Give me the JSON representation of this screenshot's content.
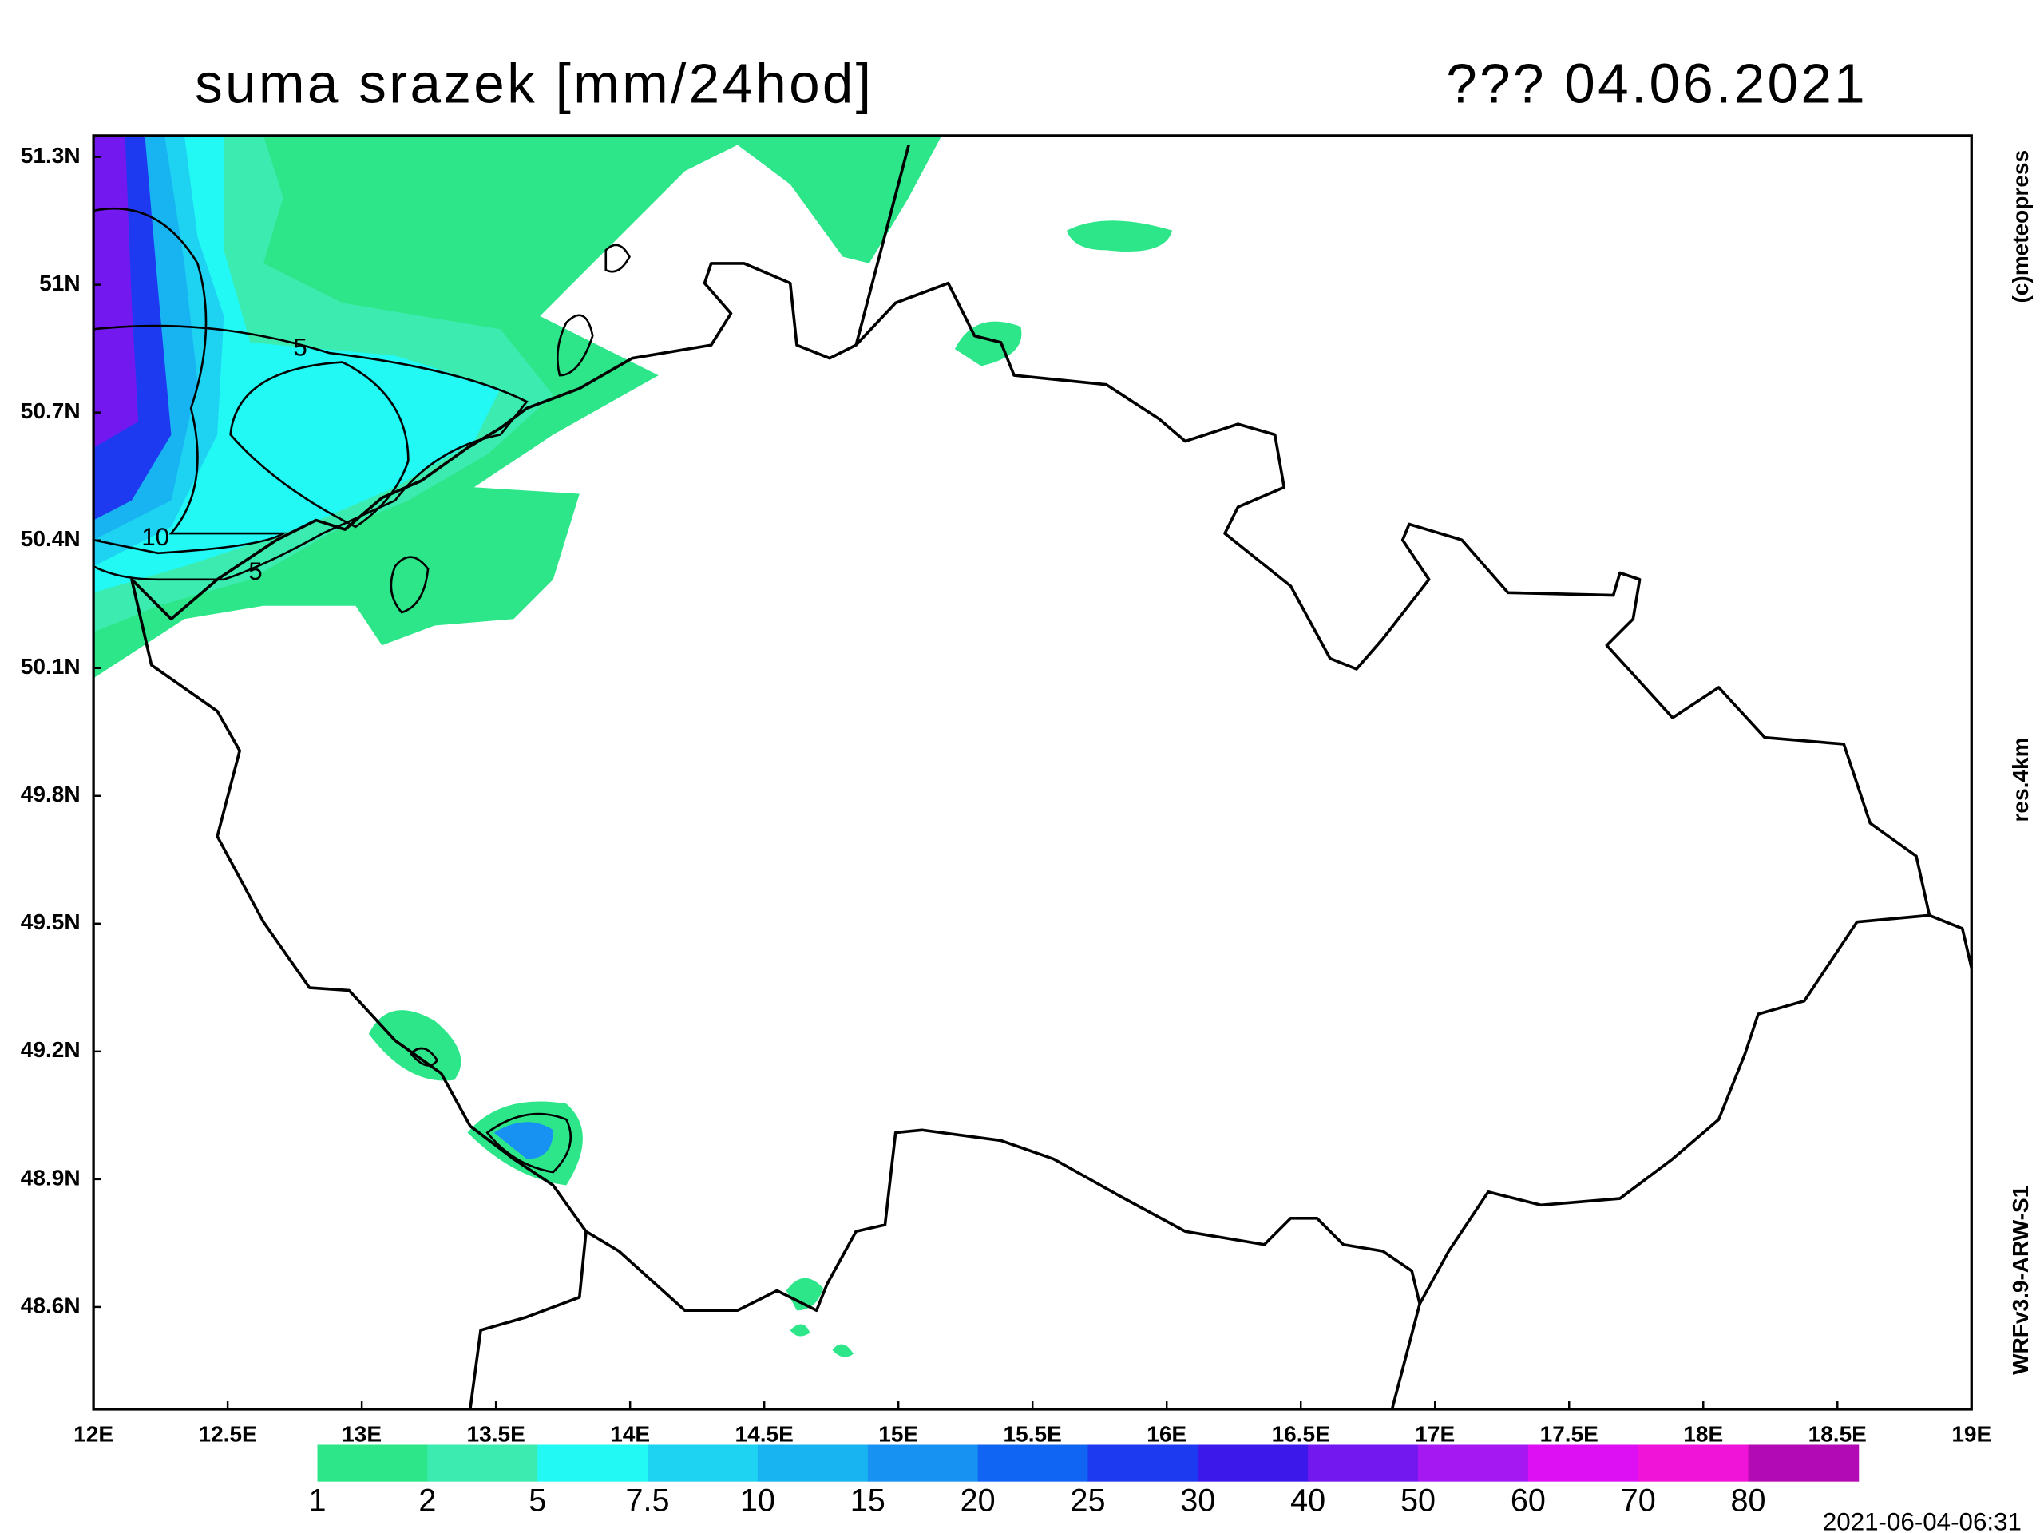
{
  "header": {
    "title": "suma srazek [mm/24hod]",
    "date": "??? 04.06.2021"
  },
  "map": {
    "xlim": [
      12,
      19
    ],
    "ylim": [
      48.36,
      51.35
    ],
    "xticks": [
      {
        "value": 12,
        "label": "12E"
      },
      {
        "value": 12.5,
        "label": "12.5E"
      },
      {
        "value": 13,
        "label": "13E"
      },
      {
        "value": 13.5,
        "label": "13.5E"
      },
      {
        "value": 14,
        "label": "14E"
      },
      {
        "value": 14.5,
        "label": "14.5E"
      },
      {
        "value": 15,
        "label": "15E"
      },
      {
        "value": 15.5,
        "label": "15.5E"
      },
      {
        "value": 16,
        "label": "16E"
      },
      {
        "value": 16.5,
        "label": "16.5E"
      },
      {
        "value": 17,
        "label": "17E"
      },
      {
        "value": 17.5,
        "label": "17.5E"
      },
      {
        "value": 18,
        "label": "18E"
      },
      {
        "value": 18.5,
        "label": "18.5E"
      },
      {
        "value": 19,
        "label": "19E"
      }
    ],
    "yticks": [
      {
        "value": 48.6,
        "label": "48.6N"
      },
      {
        "value": 48.9,
        "label": "48.9N"
      },
      {
        "value": 49.2,
        "label": "49.2N"
      },
      {
        "value": 49.5,
        "label": "49.5N"
      },
      {
        "value": 49.8,
        "label": "49.8N"
      },
      {
        "value": 50.1,
        "label": "50.1N"
      },
      {
        "value": 50.4,
        "label": "50.4N"
      },
      {
        "value": 50.7,
        "label": "50.7N"
      },
      {
        "value": 51,
        "label": "51N"
      },
      {
        "value": 51.3,
        "label": "51.3N"
      }
    ],
    "contour_labels": [
      5,
      10,
      5
    ]
  },
  "legend": {
    "levels": [
      1,
      2,
      5,
      7.5,
      10,
      15,
      20,
      25,
      30,
      40,
      50,
      60,
      70,
      80
    ],
    "colors": [
      "#2ee68a",
      "#3cebb0",
      "#22f8f4",
      "#1ed2f2",
      "#18b4f2",
      "#1892f2",
      "#1066f2",
      "#1e3af0",
      "#3c18ea",
      "#7418f0",
      "#a618f2",
      "#dc10f2",
      "#f014d8",
      "#b20ab4"
    ]
  },
  "side": {
    "copyright": "(c)meteopress",
    "resolution": "res.4km",
    "model": "WRFv3.9-ARW-S1",
    "timestamp": "2021-06-04-06:31"
  }
}
